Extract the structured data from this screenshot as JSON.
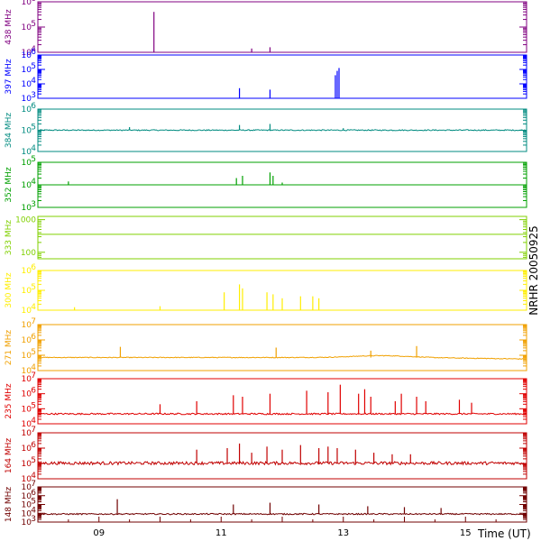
{
  "chart_data": {
    "type": "line",
    "side_label": "NRHR 20050925",
    "xlabel": "Time (UT)",
    "xlim": [
      8.0,
      16.0
    ],
    "x_ticks": [
      {
        "value": 9,
        "label": "09"
      },
      {
        "value": 11,
        "label": "11"
      },
      {
        "value": 13,
        "label": "13"
      },
      {
        "value": 15,
        "label": "15"
      }
    ],
    "panels": [
      {
        "name": "438 MHz",
        "color": "#800080",
        "ymin_exp": 4,
        "ymax_exp": 6,
        "log": true,
        "y_ticks": [
          {
            "exp": 4,
            "label": "10",
            "sup": "4"
          },
          {
            "exp": 5,
            "label": "10",
            "sup": "5"
          },
          {
            "exp": 6,
            "label": "10",
            "sup": "6"
          }
        ],
        "baseline_exp": 4.0,
        "noise": 0.0,
        "spikes": [
          [
            9.9,
            5.6
          ],
          [
            11.5,
            4.15
          ],
          [
            11.8,
            4.2
          ]
        ]
      },
      {
        "name": "397 MHz",
        "color": "#0000ff",
        "ymin_exp": 3,
        "ymax_exp": 6,
        "log": true,
        "y_ticks": [
          {
            "exp": 3,
            "label": "10",
            "sup": "3"
          },
          {
            "exp": 4,
            "label": "10",
            "sup": "4"
          },
          {
            "exp": 5,
            "label": "10",
            "sup": "5"
          },
          {
            "exp": 6,
            "label": "10",
            "sup": "6"
          }
        ],
        "baseline_exp": 3.0,
        "noise": 0.0,
        "spikes": [
          [
            11.3,
            3.7
          ],
          [
            11.8,
            3.6
          ],
          [
            12.87,
            4.6
          ],
          [
            12.9,
            4.9
          ],
          [
            12.93,
            5.1
          ]
        ]
      },
      {
        "name": "384 MHz",
        "color": "#008b80",
        "ymin_exp": 4,
        "ymax_exp": 6,
        "log": true,
        "y_ticks": [
          {
            "exp": 4,
            "label": "10",
            "sup": "4"
          },
          {
            "exp": 5,
            "label": "10",
            "sup": "5"
          },
          {
            "exp": 6,
            "label": "10",
            "sup": "6"
          }
        ],
        "baseline_exp": 5.0,
        "noise": 0.05,
        "spikes": [
          [
            9.5,
            5.15
          ],
          [
            11.3,
            5.25
          ],
          [
            11.8,
            5.3
          ],
          [
            13.0,
            5.1
          ]
        ]
      },
      {
        "name": "352 MHz",
        "color": "#00a000",
        "ymin_exp": 3,
        "ymax_exp": 5,
        "log": true,
        "y_ticks": [
          {
            "exp": 3,
            "label": "10",
            "sup": "3"
          },
          {
            "exp": 4,
            "label": "10",
            "sup": "4"
          },
          {
            "exp": 5,
            "label": "10",
            "sup": "5"
          }
        ],
        "baseline_exp": 4.0,
        "noise": 0.0,
        "spikes": [
          [
            8.5,
            4.15
          ],
          [
            11.25,
            4.3
          ],
          [
            11.35,
            4.4
          ],
          [
            11.8,
            4.55
          ],
          [
            11.85,
            4.4
          ],
          [
            12.0,
            4.1
          ]
        ]
      },
      {
        "name": "333 MHz",
        "color": "#80d000",
        "ymin_exp": 1.8,
        "ymax_exp": 3.1,
        "log": true,
        "y_ticks": [
          {
            "exp": 2,
            "label": "100",
            "sup": ""
          },
          {
            "exp": 3,
            "label": "1000",
            "sup": ""
          }
        ],
        "baseline_exp": 2.55,
        "noise": 0.0,
        "spikes": []
      },
      {
        "name": "300 MHz",
        "color": "#ffee00",
        "ymin_exp": 4,
        "ymax_exp": 6,
        "log": true,
        "y_ticks": [
          {
            "exp": 4,
            "label": "10",
            "sup": "4"
          },
          {
            "exp": 5,
            "label": "10",
            "sup": "5"
          },
          {
            "exp": 6,
            "label": "10",
            "sup": "6"
          }
        ],
        "baseline_exp": 4.0,
        "noise": 0.0,
        "spikes": [
          [
            8.6,
            4.15
          ],
          [
            10.0,
            4.2
          ],
          [
            11.05,
            4.9
          ],
          [
            11.3,
            5.3
          ],
          [
            11.35,
            5.1
          ],
          [
            11.75,
            4.9
          ],
          [
            11.85,
            4.8
          ],
          [
            12.0,
            4.6
          ],
          [
            12.3,
            4.7
          ],
          [
            12.5,
            4.7
          ],
          [
            12.6,
            4.6
          ]
        ]
      },
      {
        "name": "271 MHz",
        "color": "#f0a000",
        "ymin_exp": 4,
        "ymax_exp": 7,
        "log": true,
        "y_ticks": [
          {
            "exp": 4,
            "label": "10",
            "sup": "4"
          },
          {
            "exp": 5,
            "label": "10",
            "sup": "5"
          },
          {
            "exp": 6,
            "label": "10",
            "sup": "6"
          },
          {
            "exp": 7,
            "label": "10",
            "sup": "7"
          }
        ],
        "baseline_exp": 4.85,
        "noise": 0.05,
        "spikes": [
          [
            9.35,
            5.55
          ],
          [
            11.9,
            5.5
          ],
          [
            13.45,
            5.3
          ],
          [
            14.2,
            5.6
          ]
        ]
      },
      {
        "name": "235 MHz",
        "color": "#e00000",
        "ymin_exp": 4,
        "ymax_exp": 7,
        "log": true,
        "y_ticks": [
          {
            "exp": 4,
            "label": "10",
            "sup": "4"
          },
          {
            "exp": 5,
            "label": "10",
            "sup": "5"
          },
          {
            "exp": 6,
            "label": "10",
            "sup": "6"
          },
          {
            "exp": 7,
            "label": "10",
            "sup": "7"
          }
        ],
        "baseline_exp": 4.65,
        "noise": 0.1,
        "spikes": [
          [
            10.0,
            5.3
          ],
          [
            10.6,
            5.5
          ],
          [
            11.2,
            5.9
          ],
          [
            11.35,
            5.8
          ],
          [
            11.8,
            6.0
          ],
          [
            12.4,
            6.2
          ],
          [
            12.75,
            6.1
          ],
          [
            12.95,
            6.6
          ],
          [
            13.25,
            6.0
          ],
          [
            13.35,
            6.3
          ],
          [
            13.45,
            5.8
          ],
          [
            13.85,
            5.5
          ],
          [
            13.95,
            6.0
          ],
          [
            14.2,
            5.8
          ],
          [
            14.35,
            5.5
          ],
          [
            14.9,
            5.6
          ],
          [
            15.1,
            5.4
          ]
        ]
      },
      {
        "name": "164 MHz",
        "color": "#c00000",
        "ymin_exp": 4,
        "ymax_exp": 7,
        "log": true,
        "y_ticks": [
          {
            "exp": 4,
            "label": "10",
            "sup": "4"
          },
          {
            "exp": 5,
            "label": "10",
            "sup": "5"
          },
          {
            "exp": 6,
            "label": "10",
            "sup": "6"
          },
          {
            "exp": 7,
            "label": "10",
            "sup": "7"
          }
        ],
        "baseline_exp": 5.0,
        "noise": 0.2,
        "spikes": [
          [
            10.6,
            5.9
          ],
          [
            11.1,
            6.0
          ],
          [
            11.3,
            6.3
          ],
          [
            11.5,
            5.7
          ],
          [
            11.75,
            6.1
          ],
          [
            12.0,
            5.9
          ],
          [
            12.3,
            6.2
          ],
          [
            12.6,
            6.0
          ],
          [
            12.75,
            6.1
          ],
          [
            12.9,
            6.0
          ],
          [
            13.2,
            5.9
          ],
          [
            13.5,
            5.7
          ],
          [
            13.8,
            5.6
          ],
          [
            14.1,
            5.6
          ]
        ]
      },
      {
        "name": "148 MHz",
        "color": "#700000",
        "ymin_exp": 3,
        "ymax_exp": 7,
        "log": true,
        "y_ticks": [
          {
            "exp": 3,
            "label": "10",
            "sup": "3"
          },
          {
            "exp": 4,
            "label": "10",
            "sup": "4"
          },
          {
            "exp": 5,
            "label": "10",
            "sup": "5"
          },
          {
            "exp": 6,
            "label": "10",
            "sup": "6"
          },
          {
            "exp": 7,
            "label": "10",
            "sup": "7"
          }
        ],
        "baseline_exp": 3.9,
        "noise": 0.15,
        "spikes": [
          [
            9.3,
            5.6
          ],
          [
            11.2,
            5.0
          ],
          [
            11.8,
            5.2
          ],
          [
            12.6,
            5.0
          ],
          [
            13.4,
            4.8
          ],
          [
            14.0,
            4.7
          ],
          [
            14.6,
            4.6
          ]
        ]
      }
    ]
  }
}
